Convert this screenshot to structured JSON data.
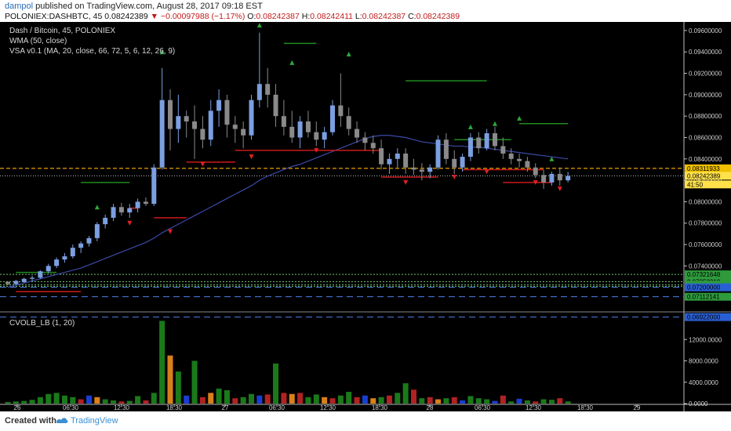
{
  "header": {
    "author": "dampol",
    "published_text": "published on TradingView.com, August 28, 2017 09:18 EST",
    "symbol": "POLONIEX:DASHBTC, 45",
    "last": "0.08242389",
    "change": "▼ −0.00097988 (−1.17%)",
    "ohlc_label_o": "O:",
    "ohlc_o": "0.08242387",
    "ohlc_label_h": "H:",
    "ohlc_h": "0.08242411",
    "ohlc_label_l": "L:",
    "ohlc_l": "0.08242387",
    "ohlc_label_c": "C:",
    "ohlc_c": "0.08242389"
  },
  "legend": {
    "main_title": "Dash / Bitcoin, 45, POLONIEX",
    "wma": "WMA (50, close)",
    "vsa": "VSA v0.1 (MA, 20, close, 66, 72, 5, 6, 12, 26, 9)",
    "volume": "CVOLB_LB (1, 20)"
  },
  "footer": {
    "created_with": "Created with",
    "brand": "TradingView"
  },
  "colors": {
    "background": "#000000",
    "up_candle": "#7b9fe0",
    "down_candle": "#8a8a8a",
    "wma": "#3c4aa8",
    "resistance": "#1f8c1f",
    "support": "#cc1a1a",
    "price_line": "#ffb000",
    "vol_green": "#1a7a1a",
    "vol_red": "#b22222",
    "vol_orange": "#d9801a",
    "vol_blue": "#1a3fd0"
  },
  "chart_data": [
    {
      "type": "candlestick",
      "ylim": [
        0.07,
        0.0968
      ],
      "ytick_labels": [
        "0.09600000",
        "0.09400000",
        "0.09200000",
        "0.09000000",
        "0.08800000",
        "0.08600000",
        "0.08400000",
        "0.08200000",
        "0.08000000",
        "0.07800000",
        "0.07600000",
        "0.07400000"
      ],
      "xtick_labels": [
        "26",
        "06:30",
        "12:30",
        "18:30",
        "27",
        "06:30",
        "12:30",
        "18:30",
        "28",
        "06:30",
        "12:30",
        "18:30",
        "29"
      ],
      "price_tags": [
        {
          "value": "0.08311933",
          "color": "#f0c000"
        },
        {
          "value": "0.08242389",
          "color": "#ffe14a"
        },
        {
          "value": "41:50",
          "color": "#ffe14a"
        },
        {
          "value": "0.07321648",
          "color": "#2e9a3c"
        },
        {
          "value": "0.07252219",
          "color": "#2e9a3c"
        },
        {
          "value": "0.07223630",
          "color": "#2e9a3c"
        },
        {
          "value": "0.07209336",
          "color": "#2e9a3c"
        },
        {
          "value": "0.07200000",
          "color": "#2a5fd4"
        },
        {
          "value": "0.07112141",
          "color": "#2e9a3c"
        },
        {
          "value": "0.06922000",
          "color": "#2a5fd4"
        }
      ],
      "candles": [
        [
          0.0725,
          0.0726,
          0.0722,
          0.0723
        ],
        [
          0.0723,
          0.0727,
          0.0722,
          0.0726
        ],
        [
          0.0725,
          0.0729,
          0.0724,
          0.0728
        ],
        [
          0.0728,
          0.0731,
          0.0726,
          0.0729
        ],
        [
          0.0729,
          0.0736,
          0.0728,
          0.0735
        ],
        [
          0.0735,
          0.0742,
          0.0733,
          0.074
        ],
        [
          0.074,
          0.0748,
          0.0738,
          0.0746
        ],
        [
          0.0746,
          0.0752,
          0.0743,
          0.0749
        ],
        [
          0.0749,
          0.076,
          0.0747,
          0.0757
        ],
        [
          0.0757,
          0.0763,
          0.0752,
          0.0761
        ],
        [
          0.0761,
          0.0768,
          0.0758,
          0.0766
        ],
        [
          0.0766,
          0.0781,
          0.0763,
          0.0779
        ],
        [
          0.0779,
          0.0788,
          0.0775,
          0.0785
        ],
        [
          0.0785,
          0.0798,
          0.0782,
          0.0795
        ],
        [
          0.0795,
          0.0799,
          0.0787,
          0.079
        ],
        [
          0.079,
          0.0798,
          0.0785,
          0.0794
        ],
        [
          0.0794,
          0.0803,
          0.079,
          0.08
        ],
        [
          0.08,
          0.0804,
          0.0796,
          0.0798
        ],
        [
          0.0798,
          0.0835,
          0.0796,
          0.0832
        ],
        [
          0.0832,
          0.0925,
          0.083,
          0.0895
        ],
        [
          0.0895,
          0.0905,
          0.0848,
          0.0868
        ],
        [
          0.0868,
          0.09,
          0.0855,
          0.088
        ],
        [
          0.088,
          0.0885,
          0.086,
          0.0875
        ],
        [
          0.0875,
          0.089,
          0.084,
          0.0868
        ],
        [
          0.0868,
          0.088,
          0.085,
          0.0858
        ],
        [
          0.0858,
          0.0895,
          0.0852,
          0.0885
        ],
        [
          0.0885,
          0.0905,
          0.087,
          0.0895
        ],
        [
          0.0895,
          0.09,
          0.086,
          0.0872
        ],
        [
          0.0872,
          0.088,
          0.0855,
          0.0868
        ],
        [
          0.0868,
          0.0875,
          0.085,
          0.0862
        ],
        [
          0.0862,
          0.09,
          0.0858,
          0.0895
        ],
        [
          0.0895,
          0.0958,
          0.0888,
          0.091
        ],
        [
          0.091,
          0.0925,
          0.0888,
          0.09
        ],
        [
          0.09,
          0.091,
          0.087,
          0.088
        ],
        [
          0.088,
          0.0895,
          0.0862,
          0.087
        ],
        [
          0.087,
          0.0885,
          0.0855,
          0.086
        ],
        [
          0.086,
          0.088,
          0.085,
          0.0875
        ],
        [
          0.0875,
          0.0885,
          0.086,
          0.0865
        ],
        [
          0.0865,
          0.0875,
          0.0852,
          0.0858
        ],
        [
          0.0858,
          0.087,
          0.085,
          0.0865
        ],
        [
          0.0865,
          0.0895,
          0.0862,
          0.089
        ],
        [
          0.089,
          0.092,
          0.087,
          0.088
        ],
        [
          0.088,
          0.0888,
          0.0862,
          0.0868
        ],
        [
          0.0868,
          0.0875,
          0.0855,
          0.086
        ],
        [
          0.086,
          0.0865,
          0.0848,
          0.0855
        ],
        [
          0.0855,
          0.0862,
          0.0845,
          0.085
        ],
        [
          0.085,
          0.0858,
          0.083,
          0.0835
        ],
        [
          0.0835,
          0.0845,
          0.0826,
          0.084
        ],
        [
          0.084,
          0.085,
          0.0832,
          0.0845
        ],
        [
          0.0845,
          0.085,
          0.0826,
          0.0832
        ],
        [
          0.0832,
          0.084,
          0.0825,
          0.083
        ],
        [
          0.083,
          0.0836,
          0.082,
          0.0828
        ],
        [
          0.0828,
          0.0835,
          0.0822,
          0.0832
        ],
        [
          0.0832,
          0.0862,
          0.083,
          0.0858
        ],
        [
          0.0858,
          0.0864,
          0.0835,
          0.084
        ],
        [
          0.084,
          0.0848,
          0.0826,
          0.0832
        ],
        [
          0.0832,
          0.0845,
          0.0828,
          0.0842
        ],
        [
          0.0842,
          0.0864,
          0.0838,
          0.086
        ],
        [
          0.086,
          0.0865,
          0.0845,
          0.085
        ],
        [
          0.085,
          0.0868,
          0.0848,
          0.0864
        ],
        [
          0.0864,
          0.087,
          0.0848,
          0.0852
        ],
        [
          0.0852,
          0.086,
          0.084,
          0.0845
        ],
        [
          0.0845,
          0.085,
          0.0835,
          0.084
        ],
        [
          0.084,
          0.0845,
          0.0832,
          0.0838
        ],
        [
          0.0838,
          0.0842,
          0.0828,
          0.0832
        ],
        [
          0.0832,
          0.0836,
          0.0822,
          0.0825
        ],
        [
          0.0825,
          0.083,
          0.0812,
          0.0818
        ],
        [
          0.0818,
          0.0828,
          0.0815,
          0.0826
        ],
        [
          0.0826,
          0.0832,
          0.0815,
          0.082
        ],
        [
          0.082,
          0.0828,
          0.0818,
          0.0824
        ]
      ],
      "wma": [
        0.072,
        0.0722,
        0.0724,
        0.0726,
        0.0728,
        0.073,
        0.0732,
        0.0734,
        0.0736,
        0.0738,
        0.0741,
        0.0744,
        0.0747,
        0.075,
        0.0753,
        0.0756,
        0.0759,
        0.0762,
        0.0766,
        0.0771,
        0.0775,
        0.0779,
        0.0783,
        0.0787,
        0.0791,
        0.0795,
        0.0799,
        0.0803,
        0.0807,
        0.0811,
        0.0815,
        0.082,
        0.0824,
        0.0827,
        0.083,
        0.0833,
        0.0835,
        0.0838,
        0.0841,
        0.0844,
        0.0847,
        0.085,
        0.0853,
        0.0856,
        0.0859,
        0.0861,
        0.0862,
        0.0862,
        0.0861,
        0.086,
        0.0858,
        0.0856,
        0.0855,
        0.0854,
        0.0853,
        0.0852,
        0.0852,
        0.0851,
        0.0851,
        0.085,
        0.0849,
        0.0848,
        0.0847,
        0.0846,
        0.0845,
        0.0844,
        0.0843,
        0.0842,
        0.0841,
        0.084
      ],
      "up_arrows": [
        [
          11,
          0.0795
        ],
        [
          19,
          0.094
        ],
        [
          31,
          0.0965
        ],
        [
          35,
          0.093
        ],
        [
          42,
          0.0938
        ],
        [
          57,
          0.087
        ],
        [
          60,
          0.0873
        ],
        [
          63,
          0.0878
        ],
        [
          67,
          0.084
        ]
      ],
      "down_arrows": [
        [
          15,
          0.078
        ],
        [
          20,
          0.0772
        ],
        [
          24,
          0.0835
        ],
        [
          30,
          0.0842
        ],
        [
          38,
          0.0848
        ],
        [
          49,
          0.0818
        ],
        [
          55,
          0.0823
        ],
        [
          59,
          0.0828
        ],
        [
          65,
          0.0818
        ],
        [
          68,
          0.0812
        ]
      ],
      "resistance_lines": [
        [
          1,
          6,
          0.0734
        ],
        [
          9,
          15,
          0.0818
        ],
        [
          34,
          38,
          0.0948
        ],
        [
          49,
          59,
          0.0913
        ],
        [
          55,
          62,
          0.0858
        ],
        [
          63,
          69,
          0.0873
        ]
      ],
      "support_lines": [
        [
          1,
          9,
          0.0716
        ],
        [
          15,
          16,
          0.0794
        ],
        [
          18,
          22,
          0.0785
        ],
        [
          22,
          28,
          0.0837
        ],
        [
          28,
          46,
          0.0848
        ],
        [
          46,
          53,
          0.0823
        ],
        [
          56,
          66,
          0.083
        ],
        [
          61,
          67,
          0.0818
        ]
      ],
      "price_line": 0.08311933,
      "current_line": 0.08242389,
      "dotted_levels": [
        0.07321648,
        0.07252219,
        0.0722363,
        0.07209336
      ],
      "dashed_levels": [
        0.072,
        0.07112141,
        0.06922
      ]
    },
    {
      "type": "bar",
      "title": "CVOLB_LB (1, 20)",
      "ylim": [
        0,
        16000
      ],
      "ytick_labels": [
        "12000.0000",
        "8000.0000",
        "4000.0000",
        "0.0000"
      ],
      "bars": [
        [
          0,
          300,
          "g"
        ],
        [
          1,
          400,
          "g"
        ],
        [
          2,
          500,
          "g"
        ],
        [
          3,
          700,
          "g"
        ],
        [
          4,
          1200,
          "g"
        ],
        [
          5,
          1800,
          "g"
        ],
        [
          6,
          2000,
          "g"
        ],
        [
          7,
          1500,
          "g"
        ],
        [
          8,
          1200,
          "g"
        ],
        [
          9,
          800,
          "r"
        ],
        [
          10,
          1500,
          "b"
        ],
        [
          11,
          1200,
          "o"
        ],
        [
          12,
          800,
          "g"
        ],
        [
          13,
          600,
          "g"
        ],
        [
          14,
          400,
          "r"
        ],
        [
          15,
          500,
          "g"
        ],
        [
          16,
          1400,
          "g"
        ],
        [
          17,
          600,
          "r"
        ],
        [
          18,
          2000,
          "g"
        ],
        [
          19,
          15500,
          "g"
        ],
        [
          20,
          9000,
          "o"
        ],
        [
          21,
          6000,
          "g"
        ],
        [
          22,
          1500,
          "b"
        ],
        [
          23,
          8000,
          "g"
        ],
        [
          24,
          1200,
          "r"
        ],
        [
          25,
          2000,
          "o"
        ],
        [
          26,
          2800,
          "g"
        ],
        [
          27,
          2500,
          "g"
        ],
        [
          28,
          1000,
          "r"
        ],
        [
          29,
          1200,
          "g"
        ],
        [
          30,
          1800,
          "g"
        ],
        [
          31,
          1500,
          "b"
        ],
        [
          32,
          1700,
          "r"
        ],
        [
          33,
          7500,
          "g"
        ],
        [
          34,
          2000,
          "r"
        ],
        [
          35,
          1800,
          "o"
        ],
        [
          36,
          2000,
          "r"
        ],
        [
          37,
          1200,
          "g"
        ],
        [
          38,
          1700,
          "g"
        ],
        [
          39,
          1200,
          "o"
        ],
        [
          40,
          1000,
          "r"
        ],
        [
          41,
          1500,
          "g"
        ],
        [
          42,
          2200,
          "g"
        ],
        [
          43,
          1200,
          "r"
        ],
        [
          44,
          1500,
          "b"
        ],
        [
          45,
          1000,
          "o"
        ],
        [
          46,
          1200,
          "g"
        ],
        [
          47,
          1500,
          "r"
        ],
        [
          48,
          2000,
          "g"
        ],
        [
          49,
          3800,
          "g"
        ],
        [
          50,
          2600,
          "r"
        ],
        [
          51,
          1000,
          "g"
        ],
        [
          52,
          1200,
          "r"
        ],
        [
          53,
          800,
          "o"
        ],
        [
          54,
          1000,
          "g"
        ],
        [
          55,
          1200,
          "r"
        ],
        [
          56,
          600,
          "b"
        ],
        [
          57,
          1400,
          "g"
        ],
        [
          58,
          1000,
          "g"
        ],
        [
          59,
          800,
          "g"
        ],
        [
          60,
          500,
          "b"
        ],
        [
          61,
          1500,
          "r"
        ],
        [
          62,
          400,
          "g"
        ],
        [
          63,
          900,
          "b"
        ],
        [
          64,
          600,
          "g"
        ],
        [
          65,
          400,
          "r"
        ],
        [
          66,
          800,
          "g"
        ],
        [
          67,
          700,
          "g"
        ],
        [
          68,
          1000,
          "r"
        ],
        [
          69,
          400,
          "g"
        ]
      ]
    }
  ]
}
